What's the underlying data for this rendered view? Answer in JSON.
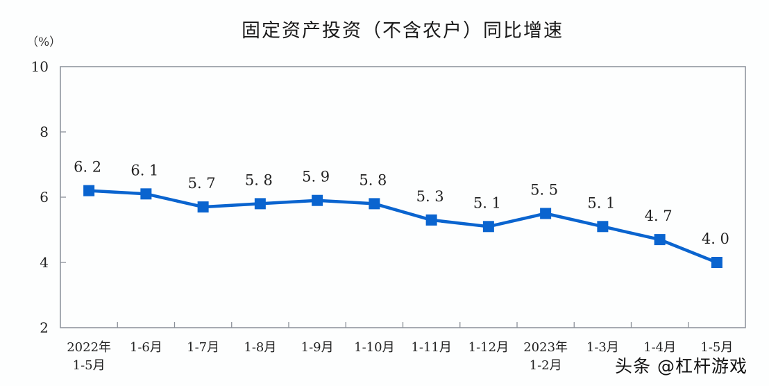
{
  "header": {
    "title": "固定资产投资（不含农户）同比增速",
    "unit_label": "（%）"
  },
  "watermark": "头条 @杠杆游戏",
  "colors": {
    "line": "#0a64cf",
    "axis": "#8a8f98",
    "text": "#222222"
  },
  "chart_data": {
    "type": "line",
    "title": "固定资产投资（不含农户）同比增速",
    "xlabel": "",
    "ylabel": "（%）",
    "ylim": [
      2,
      10
    ],
    "yticks": [
      2,
      4,
      6,
      8,
      10
    ],
    "grid": false,
    "legend": null,
    "categories": [
      "2022年\n1-5月",
      "1-6月",
      "1-7月",
      "1-8月",
      "1-9月",
      "1-10月",
      "1-11月",
      "1-12月",
      "2023年\n1-2月",
      "1-3月",
      "1-4月",
      "1-5月"
    ],
    "series": [
      {
        "name": "固定资产投资（不含农户）同比增速",
        "values": [
          6.2,
          6.1,
          5.7,
          5.8,
          5.9,
          5.8,
          5.3,
          5.1,
          5.5,
          5.1,
          4.7,
          4.0
        ],
        "labels": [
          "6.2",
          "6.1",
          "5.7",
          "5.8",
          "5.9",
          "5.8",
          "5.3",
          "5.1",
          "5.5",
          "5.1",
          "4.7",
          "4.0"
        ],
        "marker": "square"
      }
    ]
  }
}
